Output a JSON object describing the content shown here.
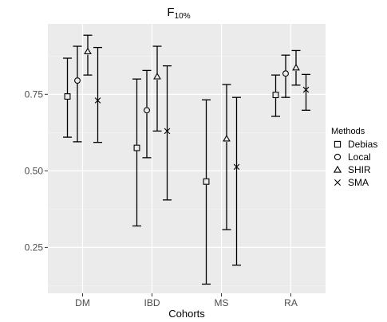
{
  "chart_data": {
    "type": "errorbar",
    "title": "F",
    "title_subscript": "10%",
    "xlabel": "Cohorts",
    "ylabel": "",
    "categories": [
      "DM",
      "IBD",
      "MS",
      "RA"
    ],
    "ylim": [
      0.1,
      0.98
    ],
    "yticks": [
      0.25,
      0.5,
      0.75
    ],
    "ytick_labels": [
      "0.25",
      "0.50",
      "0.75"
    ],
    "grid": true,
    "legend": {
      "title": "Methods",
      "position": "right"
    },
    "series": [
      {
        "name": "Debias",
        "marker": "square",
        "values": [
          0.743,
          0.575,
          0.465,
          0.748
        ],
        "lower": [
          0.61,
          0.32,
          0.13,
          0.678
        ],
        "upper": [
          0.868,
          0.8,
          0.732,
          0.813
        ]
      },
      {
        "name": "Local",
        "marker": "circle",
        "values": [
          0.795,
          0.698,
          null,
          0.818
        ],
        "lower": [
          0.595,
          0.543,
          null,
          0.74
        ],
        "upper": [
          0.907,
          0.828,
          null,
          0.878
        ]
      },
      {
        "name": "SHIR",
        "marker": "triangle",
        "values": [
          0.89,
          0.808,
          0.605,
          0.837
        ],
        "lower": [
          0.813,
          0.63,
          0.308,
          0.78
        ],
        "upper": [
          0.943,
          0.907,
          0.782,
          0.893
        ]
      },
      {
        "name": "SMA",
        "marker": "cross",
        "values": [
          0.73,
          0.63,
          0.513,
          0.765
        ],
        "lower": [
          0.593,
          0.405,
          0.192,
          0.698
        ],
        "upper": [
          0.903,
          0.843,
          0.74,
          0.815
        ]
      }
    ],
    "colors": {
      "panel": "#ebebeb",
      "grid_major": "#ffffff",
      "grid_minor": "#f5f5f5",
      "ink": "#000000",
      "tick": "#4d4d4d"
    }
  }
}
